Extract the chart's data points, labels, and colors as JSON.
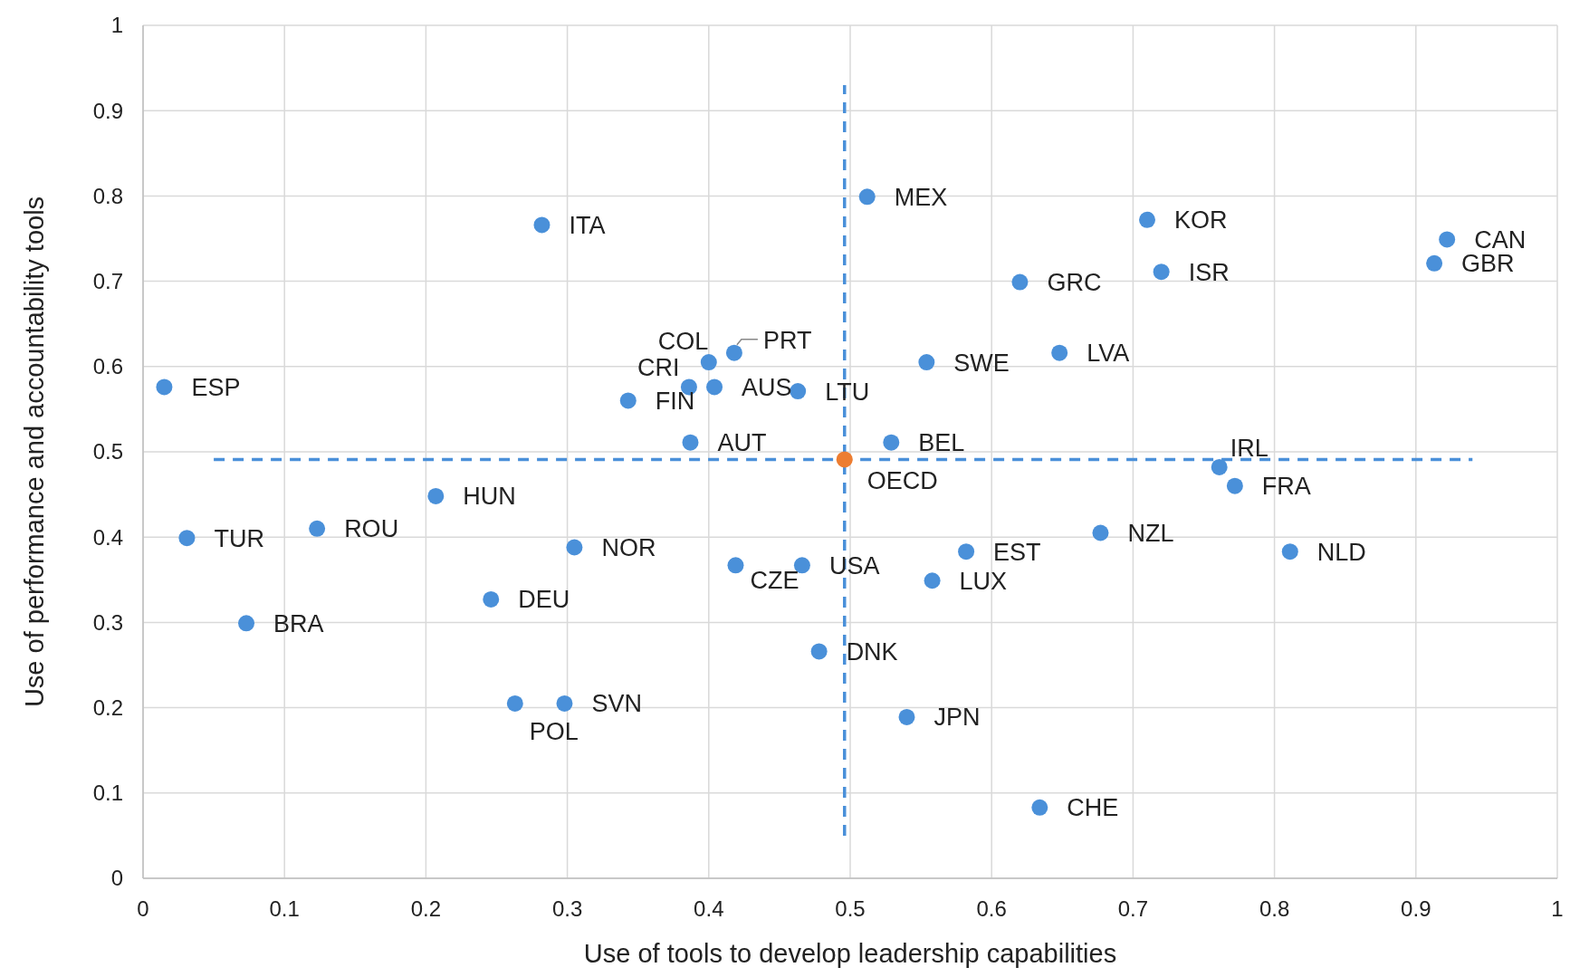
{
  "chart_data": {
    "type": "scatter",
    "xlabel": "Use of tools to develop leadership capabilities",
    "ylabel": "Use of performance and accountability tools",
    "xlim": [
      0,
      1
    ],
    "ylim": [
      0,
      1
    ],
    "xticks": [
      0,
      0.1,
      0.2,
      0.3,
      0.4,
      0.5,
      0.6,
      0.7,
      0.8,
      0.9,
      1
    ],
    "yticks": [
      0,
      0.1,
      0.2,
      0.3,
      0.4,
      0.5,
      0.6,
      0.7,
      0.8,
      0.9,
      1
    ],
    "grid": true,
    "marker": "circle",
    "series": [
      {
        "type": "line",
        "color": "#4a90d9",
        "line_style": "dashed",
        "marker": "none",
        "x": [
          0.496,
          0.496
        ],
        "values": [
          0.05,
          0.93
        ]
      },
      {
        "type": "line",
        "color": "#4a90d9",
        "line_style": "dashed",
        "marker": "none",
        "x": [
          0.05,
          0.94
        ],
        "values": [
          0.491,
          0.491
        ]
      },
      {
        "x": [
          0.015,
          0.031,
          0.073,
          0.123,
          0.207,
          0.246,
          0.263,
          0.298,
          0.305,
          0.282,
          0.343,
          0.386,
          0.387,
          0.4,
          0.404,
          0.418,
          0.419,
          0.466,
          0.463,
          0.478,
          0.496,
          0.512,
          0.529,
          0.54,
          0.554,
          0.558,
          0.582,
          0.62,
          0.648,
          0.634,
          0.677,
          0.71,
          0.72,
          0.761,
          0.772,
          0.811,
          0.913,
          0.922
        ],
        "values": [
          0.576,
          0.399,
          0.299,
          0.41,
          0.448,
          0.327,
          0.205,
          0.205,
          0.388,
          0.766,
          0.56,
          0.576,
          0.511,
          0.605,
          0.576,
          0.616,
          0.367,
          0.367,
          0.571,
          0.266,
          0.491,
          0.799,
          0.511,
          0.189,
          0.605,
          0.349,
          0.383,
          0.699,
          0.616,
          0.083,
          0.405,
          0.772,
          0.711,
          0.482,
          0.46,
          0.383,
          0.721,
          0.749
        ],
        "colors": [
          "#4a90d9",
          "#4a90d9",
          "#4a90d9",
          "#4a90d9",
          "#4a90d9",
          "#4a90d9",
          "#4a90d9",
          "#4a90d9",
          "#4a90d9",
          "#4a90d9",
          "#4a90d9",
          "#4a90d9",
          "#4a90d9",
          "#4a90d9",
          "#4a90d9",
          "#4a90d9",
          "#4a90d9",
          "#4a90d9",
          "#4a90d9",
          "#4a90d9",
          "#ed7d31",
          "#4a90d9",
          "#4a90d9",
          "#4a90d9",
          "#4a90d9",
          "#4a90d9",
          "#4a90d9",
          "#4a90d9",
          "#4a90d9",
          "#4a90d9",
          "#4a90d9",
          "#4a90d9",
          "#4a90d9",
          "#4a90d9",
          "#4a90d9",
          "#4a90d9",
          "#4a90d9",
          "#4a90d9"
        ]
      }
    ],
    "annotations": [
      {
        "text": "ESP",
        "x": 0.015,
        "y": 0.576
      },
      {
        "text": "TUR",
        "x": 0.031,
        "y": 0.399
      },
      {
        "text": "BRA",
        "x": 0.073,
        "y": 0.299
      },
      {
        "text": "ROU",
        "x": 0.123,
        "y": 0.41
      },
      {
        "text": "HUN",
        "x": 0.207,
        "y": 0.448
      },
      {
        "text": "DEU",
        "x": 0.246,
        "y": 0.327
      },
      {
        "text": "POL",
        "x": 0.263,
        "y": 0.205
      },
      {
        "text": "SVN",
        "x": 0.298,
        "y": 0.205
      },
      {
        "text": "NOR",
        "x": 0.305,
        "y": 0.388
      },
      {
        "text": "ITA",
        "x": 0.282,
        "y": 0.766
      },
      {
        "text": "FIN",
        "x": 0.343,
        "y": 0.56
      },
      {
        "text": "CRI",
        "x": 0.386,
        "y": 0.576
      },
      {
        "text": "AUT",
        "x": 0.387,
        "y": 0.511
      },
      {
        "text": "COL",
        "x": 0.4,
        "y": 0.605
      },
      {
        "text": "AUS",
        "x": 0.404,
        "y": 0.576
      },
      {
        "text": "PRT",
        "x": 0.418,
        "y": 0.616
      },
      {
        "text": "CZE",
        "x": 0.419,
        "y": 0.367
      },
      {
        "text": "USA",
        "x": 0.466,
        "y": 0.367
      },
      {
        "text": "LTU",
        "x": 0.463,
        "y": 0.571
      },
      {
        "text": "DNK",
        "x": 0.478,
        "y": 0.266
      },
      {
        "text": "OECD",
        "x": 0.496,
        "y": 0.491
      },
      {
        "text": "MEX",
        "x": 0.512,
        "y": 0.799
      },
      {
        "text": "BEL",
        "x": 0.529,
        "y": 0.511
      },
      {
        "text": "JPN",
        "x": 0.54,
        "y": 0.189
      },
      {
        "text": "SWE",
        "x": 0.554,
        "y": 0.605
      },
      {
        "text": "LUX",
        "x": 0.558,
        "y": 0.349
      },
      {
        "text": "EST",
        "x": 0.582,
        "y": 0.383
      },
      {
        "text": "GRC",
        "x": 0.62,
        "y": 0.699
      },
      {
        "text": "LVA",
        "x": 0.648,
        "y": 0.616
      },
      {
        "text": "CHE",
        "x": 0.634,
        "y": 0.083
      },
      {
        "text": "NZL",
        "x": 0.677,
        "y": 0.405
      },
      {
        "text": "KOR",
        "x": 0.71,
        "y": 0.772
      },
      {
        "text": "ISR",
        "x": 0.72,
        "y": 0.711
      },
      {
        "text": "IRL",
        "x": 0.761,
        "y": 0.482
      },
      {
        "text": "FRA",
        "x": 0.772,
        "y": 0.46
      },
      {
        "text": "NLD",
        "x": 0.811,
        "y": 0.383
      },
      {
        "text": "GBR",
        "x": 0.913,
        "y": 0.721
      },
      {
        "text": "CAN",
        "x": 0.922,
        "y": 0.749
      }
    ]
  }
}
